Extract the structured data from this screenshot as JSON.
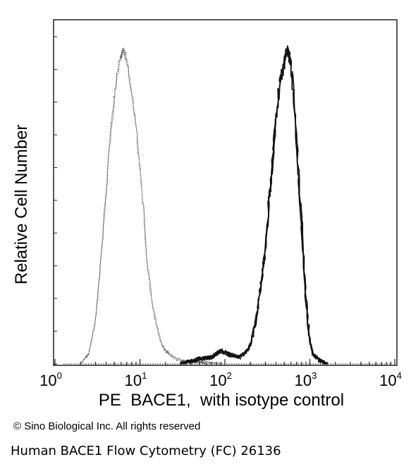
{
  "chart_data": {
    "type": "line",
    "ylabel": "Relative Cell Number",
    "xlabel": "PE  BACE1,  with isotype control",
    "x_scale": "log",
    "xlim": [
      1,
      10000
    ],
    "x_ticks": [
      {
        "value": 1,
        "base": "10",
        "exp": "0"
      },
      {
        "value": 10,
        "base": "10",
        "exp": "1"
      },
      {
        "value": 100,
        "base": "10",
        "exp": "2"
      },
      {
        "value": 1000,
        "base": "10",
        "exp": "3"
      },
      {
        "value": 10000,
        "base": "10",
        "exp": "4"
      }
    ],
    "ylim": [
      0,
      100
    ],
    "y_tick_labels": false,
    "grid": false,
    "series": [
      {
        "style": "dotted",
        "color": "#444444",
        "points": [
          [
            2.0,
            0
          ],
          [
            2.5,
            3
          ],
          [
            3.0,
            13
          ],
          [
            3.5,
            33
          ],
          [
            4.0,
            53
          ],
          [
            4.5,
            70
          ],
          [
            5.0,
            82
          ],
          [
            5.5,
            90
          ],
          [
            6.0,
            94
          ],
          [
            6.5,
            96
          ],
          [
            7.0,
            92
          ],
          [
            7.5,
            88
          ],
          [
            8.0,
            83
          ],
          [
            9.0,
            72
          ],
          [
            10.0,
            60
          ],
          [
            11.0,
            47
          ],
          [
            12.0,
            33
          ],
          [
            14.0,
            18
          ],
          [
            16.0,
            11
          ],
          [
            18.0,
            6
          ],
          [
            20.0,
            4
          ],
          [
            25.0,
            2
          ],
          [
            30.0,
            1
          ],
          [
            50.0,
            0.5
          ],
          [
            90.0,
            0
          ]
        ]
      },
      {
        "style": "solid",
        "color": "#111111",
        "points": [
          [
            30,
            0
          ],
          [
            50,
            1.5
          ],
          [
            70,
            2
          ],
          [
            90,
            4
          ],
          [
            110,
            3
          ],
          [
            150,
            2
          ],
          [
            180,
            4
          ],
          [
            200,
            6
          ],
          [
            230,
            13
          ],
          [
            260,
            22
          ],
          [
            300,
            35
          ],
          [
            330,
            50
          ],
          [
            360,
            60
          ],
          [
            400,
            75
          ],
          [
            440,
            85
          ],
          [
            480,
            90
          ],
          [
            510,
            93
          ],
          [
            540,
            96
          ],
          [
            580,
            94
          ],
          [
            620,
            88
          ],
          [
            660,
            79
          ],
          [
            700,
            68
          ],
          [
            750,
            55
          ],
          [
            800,
            43
          ],
          [
            850,
            30
          ],
          [
            900,
            20
          ],
          [
            950,
            13
          ],
          [
            1000,
            7
          ],
          [
            1100,
            3
          ],
          [
            1300,
            1
          ],
          [
            1600,
            0
          ]
        ]
      }
    ]
  },
  "footer": {
    "copyright": "© Sino Biological Inc. All rights reserved",
    "caption": "Human BACE1 Flow Cytometry (FC) 26136"
  }
}
